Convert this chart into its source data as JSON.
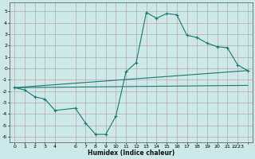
{
  "xlabel": "Humidex (Indice chaleur)",
  "background_color": "#cce8e8",
  "grid_color": "#b8a8a8",
  "line_color": "#1a7a6e",
  "xlim": [
    -0.5,
    23.5
  ],
  "ylim": [
    -6.5,
    5.8
  ],
  "xtick_labels": [
    "0",
    "1",
    "2",
    "3",
    "4",
    "",
    "6",
    "7",
    "8",
    "9",
    "10",
    "11",
    "12",
    "13",
    "14",
    "15",
    "16",
    "17",
    "18",
    "19",
    "20",
    "21",
    "2223"
  ],
  "ytick_values": [
    -6,
    -5,
    -4,
    -3,
    -2,
    -1,
    0,
    1,
    2,
    3,
    4,
    5
  ],
  "series_main": {
    "x": [
      0,
      1,
      2,
      3,
      4,
      6,
      7,
      8,
      9,
      10,
      11,
      12,
      13,
      14,
      15,
      16,
      17,
      18,
      19,
      20,
      21,
      22,
      23
    ],
    "y": [
      -1.7,
      -1.9,
      -2.5,
      -2.7,
      -3.7,
      -3.5,
      -4.8,
      -5.8,
      -5.8,
      -4.2,
      -0.3,
      0.5,
      4.9,
      4.4,
      4.8,
      4.7,
      2.9,
      2.7,
      2.2,
      1.9,
      1.8,
      0.3,
      -0.2
    ]
  },
  "series_line1": {
    "x": [
      0,
      23
    ],
    "y": [
      -1.7,
      -0.2
    ]
  },
  "series_line2": {
    "x": [
      0,
      23
    ],
    "y": [
      -1.7,
      -1.5
    ]
  }
}
